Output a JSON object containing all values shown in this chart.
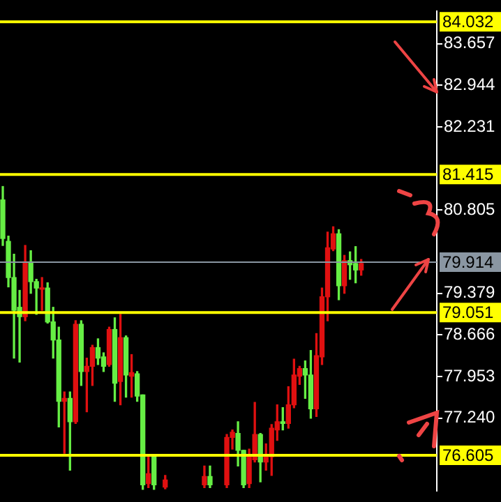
{
  "chart_data": {
    "type": "candlestick",
    "categories": [
      null,
      null,
      null,
      null,
      null,
      null,
      null,
      null,
      null,
      null,
      null,
      null,
      null,
      null,
      null,
      null,
      null,
      null,
      null,
      null,
      null,
      null,
      null,
      null,
      null,
      null,
      null,
      null,
      null,
      null,
      null,
      null,
      null,
      null,
      null,
      null,
      null,
      null,
      null,
      null,
      null,
      null,
      null,
      null,
      null,
      null,
      null,
      null,
      null,
      null,
      null,
      null,
      null,
      null,
      null,
      null,
      null,
      null,
      null,
      null,
      null,
      null,
      null,
      null,
      null,
      null,
      null,
      null,
      null,
      null,
      null,
      null,
      null,
      null,
      null,
      null,
      null,
      null
    ],
    "ohlc": [
      [
        80.32,
        81.21,
        80.2,
        80.98
      ],
      [
        79.65,
        80.36,
        79.49,
        80.27
      ],
      [
        79.09,
        80.05,
        78.27,
        79.65
      ],
      [
        78.98,
        79.43,
        78.2,
        79.14
      ],
      [
        79.92,
        80.2,
        78.91,
        78.98
      ],
      [
        79.58,
        80.11,
        79.38,
        79.92
      ],
      [
        79.47,
        79.62,
        79.02,
        79.58
      ],
      [
        79.47,
        79.65,
        79.09,
        79.45
      ],
      [
        78.89,
        79.56,
        78.87,
        79.47
      ],
      [
        78.58,
        79.14,
        78.27,
        78.89
      ],
      [
        77.53,
        78.8,
        77.09,
        78.58
      ],
      [
        77.58,
        77.69,
        76.64,
        77.53
      ],
      [
        77.18,
        77.69,
        76.35,
        77.58
      ],
      [
        78.85,
        78.91,
        77.15,
        77.18
      ],
      [
        78.04,
        78.91,
        77.8,
        78.85
      ],
      [
        78.13,
        78.27,
        77.35,
        78.04
      ],
      [
        78.45,
        78.49,
        77.8,
        78.13
      ],
      [
        78.27,
        78.6,
        78.16,
        78.45
      ],
      [
        78.13,
        78.36,
        78.04,
        78.29
      ],
      [
        78.76,
        78.8,
        78.13,
        78.16
      ],
      [
        77.84,
        78.96,
        77.53,
        78.76
      ],
      [
        78.62,
        79.02,
        77.47,
        77.87
      ],
      [
        77.98,
        78.65,
        77.6,
        78.62
      ],
      [
        78.02,
        78.33,
        77.6,
        77.96
      ],
      [
        77.62,
        78.04,
        77.53,
        78.0
      ],
      [
        76.1,
        77.64,
        76.02,
        77.64
      ],
      [
        76.29,
        76.6,
        76.05,
        76.12
      ],
      [
        76.1,
        76.6,
        76.02,
        76.6
      ],
      null,
      [
        76.18,
        76.26,
        76.03,
        76.06
      ],
      null,
      null,
      null,
      null,
      null,
      null,
      [
        76.24,
        76.42,
        76.05,
        76.1
      ],
      [
        76.1,
        76.42,
        76.05,
        76.24
      ],
      null,
      null,
      [
        76.91,
        76.96,
        76.05,
        76.1
      ],
      [
        77.0,
        77.04,
        76.71,
        76.91
      ],
      [
        76.69,
        77.18,
        76.42,
        76.98
      ],
      [
        76.1,
        76.69,
        76.05,
        76.69
      ],
      [
        76.6,
        76.71,
        76.05,
        76.12
      ],
      [
        76.96,
        77.51,
        76.49,
        76.53
      ],
      [
        76.49,
        76.98,
        76.15,
        76.96
      ],
      [
        76.6,
        76.8,
        76.35,
        76.49
      ],
      [
        77.07,
        77.13,
        76.26,
        76.58
      ],
      [
        77.18,
        77.47,
        76.86,
        77.04
      ],
      [
        77.15,
        77.42,
        77.04,
        77.18
      ],
      [
        77.47,
        77.78,
        77.07,
        77.15
      ],
      [
        77.98,
        78.25,
        77.42,
        77.47
      ],
      [
        78.09,
        78.13,
        77.82,
        77.96
      ],
      [
        77.98,
        78.22,
        77.58,
        78.09
      ],
      [
        77.4,
        78.4,
        77.24,
        77.98
      ],
      [
        78.31,
        78.69,
        77.27,
        77.4
      ],
      [
        79.32,
        79.47,
        78.16,
        78.29
      ],
      [
        80.16,
        80.43,
        78.91,
        79.32
      ],
      [
        80.4,
        80.52,
        80.11,
        80.14
      ],
      [
        79.51,
        80.47,
        79.27,
        80.4
      ],
      [
        79.94,
        80.03,
        79.38,
        79.51
      ],
      [
        79.87,
        80.09,
        79.62,
        79.94
      ],
      [
        79.78,
        80.18,
        79.56,
        79.89
      ],
      [
        79.89,
        79.96,
        79.69,
        79.78
      ],
      null,
      null,
      null,
      null,
      null,
      null,
      null,
      null,
      null,
      null,
      null,
      null,
      null
    ],
    "ylim": [
      76.0,
      84.21
    ],
    "yticks": [
      83.657,
      82.944,
      82.231,
      80.805,
      79.379,
      78.666,
      77.953,
      {
        "value": 77.24,
        "label": "77.240"
      }
    ],
    "ref_lines": [
      {
        "axis": "y",
        "value": 84.032,
        "label": "84.032",
        "color": "#ffff00"
      },
      {
        "axis": "y",
        "value": 81.415,
        "label": "81.415",
        "color": "#ffff00"
      },
      {
        "axis": "y",
        "value": 79.914,
        "label": "79.914",
        "color": "#8a96a2"
      },
      {
        "axis": "y",
        "value": 79.051,
        "label": "79.051",
        "color": "#ffff00"
      },
      {
        "axis": "y",
        "value": 76.605,
        "label": "76.605",
        "color": "#ffff00"
      }
    ],
    "tick_labels": "y"
  }
}
